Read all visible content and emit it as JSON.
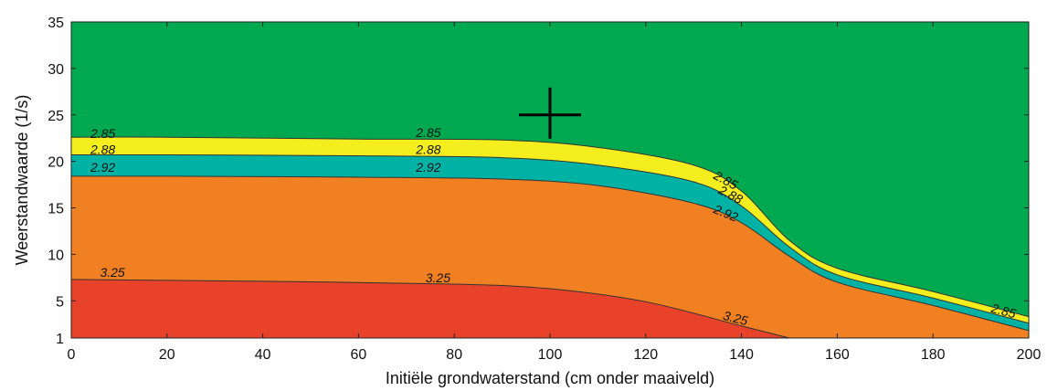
{
  "chart_data": {
    "type": "area",
    "title": "",
    "xlabel": "Initiële grondwaterstand (cm onder maaiveld)",
    "ylabel": "Weerstandwaarde (1/s)",
    "xlim": [
      0,
      200
    ],
    "ylim": [
      1,
      35
    ],
    "x_ticks": [
      "0",
      "20",
      "40",
      "60",
      "80",
      "100",
      "120",
      "140",
      "160",
      "180",
      "200"
    ],
    "y_ticks": [
      "1",
      "5",
      "10",
      "15",
      "20",
      "25",
      "30",
      "35"
    ],
    "grid": false,
    "colors": {
      "background_zone": "#00a94f",
      "band_285_288": "#f5ee1f",
      "band_288_292": "#00b2a4",
      "band_292_325": "#f08021",
      "band_325": "#e8432a",
      "contour_line": "#333333"
    },
    "contours": [
      {
        "level": "2.85",
        "points": [
          [
            0,
            22.6
          ],
          [
            20,
            22.6
          ],
          [
            60,
            22.4
          ],
          [
            90,
            22.3
          ],
          [
            110,
            21.5
          ],
          [
            130,
            19.6
          ],
          [
            140,
            16.8
          ],
          [
            150,
            11.5
          ],
          [
            160,
            8.5
          ],
          [
            180,
            6.0
          ],
          [
            200,
            3.3
          ]
        ],
        "labels": [
          [
            4,
            22.5
          ],
          [
            72,
            22.6
          ],
          [
            134,
            18.2
          ],
          [
            192,
            3.8
          ]
        ]
      },
      {
        "level": "2.88",
        "points": [
          [
            0,
            20.7
          ],
          [
            20,
            20.7
          ],
          [
            60,
            20.6
          ],
          [
            90,
            20.4
          ],
          [
            110,
            19.6
          ],
          [
            130,
            17.8
          ],
          [
            140,
            15.2
          ],
          [
            150,
            10.8
          ],
          [
            160,
            7.8
          ],
          [
            180,
            5.3
          ],
          [
            200,
            2.6
          ]
        ],
        "labels": [
          [
            4,
            20.8
          ],
          [
            72,
            20.8
          ],
          [
            135,
            16.6
          ]
        ]
      },
      {
        "level": "2.92",
        "points": [
          [
            0,
            18.4
          ],
          [
            20,
            18.4
          ],
          [
            60,
            18.3
          ],
          [
            90,
            18.1
          ],
          [
            110,
            17.4
          ],
          [
            130,
            15.5
          ],
          [
            140,
            13.4
          ],
          [
            150,
            9.8
          ],
          [
            160,
            7.0
          ],
          [
            180,
            4.5
          ],
          [
            200,
            1.8
          ]
        ],
        "labels": [
          [
            4,
            18.9
          ],
          [
            72,
            18.9
          ],
          [
            134,
            14.5
          ]
        ]
      },
      {
        "level": "3.25",
        "points": [
          [
            0,
            7.3
          ],
          [
            40,
            7.1
          ],
          [
            80,
            6.8
          ],
          [
            100,
            6.3
          ],
          [
            120,
            4.9
          ],
          [
            140,
            2.3
          ],
          [
            150,
            1.0
          ]
        ],
        "labels": [
          [
            6,
            7.6
          ],
          [
            74,
            7.0
          ],
          [
            136,
            3.0
          ]
        ]
      }
    ],
    "marker": {
      "x": 100,
      "y": 25,
      "symbol": "+"
    }
  }
}
